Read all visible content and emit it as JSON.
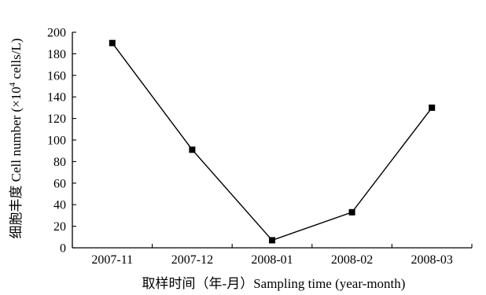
{
  "chart_data": {
    "type": "line",
    "categories": [
      "2007-11",
      "2007-12",
      "2008-01",
      "2008-02",
      "2008-03"
    ],
    "series": [
      {
        "values": [
          190,
          91,
          7,
          33,
          130
        ]
      }
    ],
    "xlabel": "取样时间（年-月）Sampling time (year-month)",
    "ylabel_prefix": "细胞丰度 Cell number (×10",
    "ylabel_exp": "4",
    "ylabel_suffix": " cells/L)",
    "ylim": [
      0,
      200
    ],
    "yticks": [
      0,
      20,
      40,
      60,
      80,
      100,
      120,
      140,
      160,
      180,
      200
    ],
    "marker": "square",
    "grid": false,
    "line_color": "#000000"
  }
}
